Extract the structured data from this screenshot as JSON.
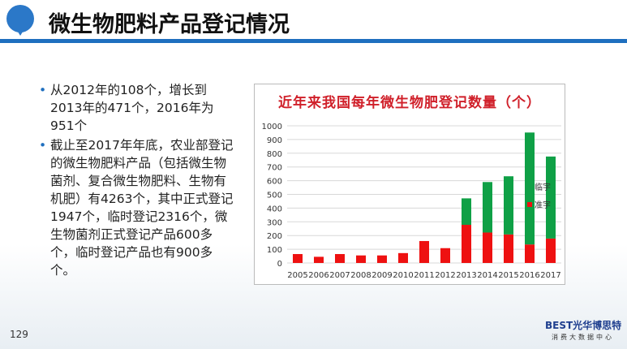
{
  "header": {
    "title": "微生物肥料产品登记情况"
  },
  "bullets": [
    "从2012年的108个，增长到2013年的471个，2016年为951个",
    "截止至2017年年底，农业部登记的微生物肥料产品（包括微生物菌剂、复合微生物肥料、生物有机肥）有4263个，其中正式登记1947个，临时登记2316个，微生物菌剂正式登记产品600多个，临时登记产品也有900多个。"
  ],
  "page_number": "129",
  "footer": {
    "brand": "BEST光华博思特",
    "sub": "消费大数据中心"
  },
  "chart_data": {
    "type": "bar",
    "stacked": true,
    "title": "近年来我国每年微生物肥登记数量（个）",
    "categories": [
      "2005",
      "2006",
      "2007",
      "2008",
      "2009",
      "2010",
      "2011",
      "2012",
      "2013",
      "2014",
      "2015",
      "2016",
      "2017"
    ],
    "series": [
      {
        "name": "准字",
        "color": "#ee1111",
        "values": [
          65,
          45,
          65,
          55,
          55,
          72,
          160,
          108,
          278,
          222,
          208,
          135,
          178
        ]
      },
      {
        "name": "临字",
        "color": "#0fa046",
        "values": [
          0,
          0,
          0,
          0,
          0,
          0,
          0,
          0,
          193,
          368,
          424,
          816,
          598
        ]
      }
    ],
    "ylim": [
      0,
      1000
    ],
    "yticks": [
      0,
      100,
      200,
      300,
      400,
      500,
      600,
      700,
      800,
      900,
      1000
    ],
    "grid": true,
    "legend": "right"
  }
}
